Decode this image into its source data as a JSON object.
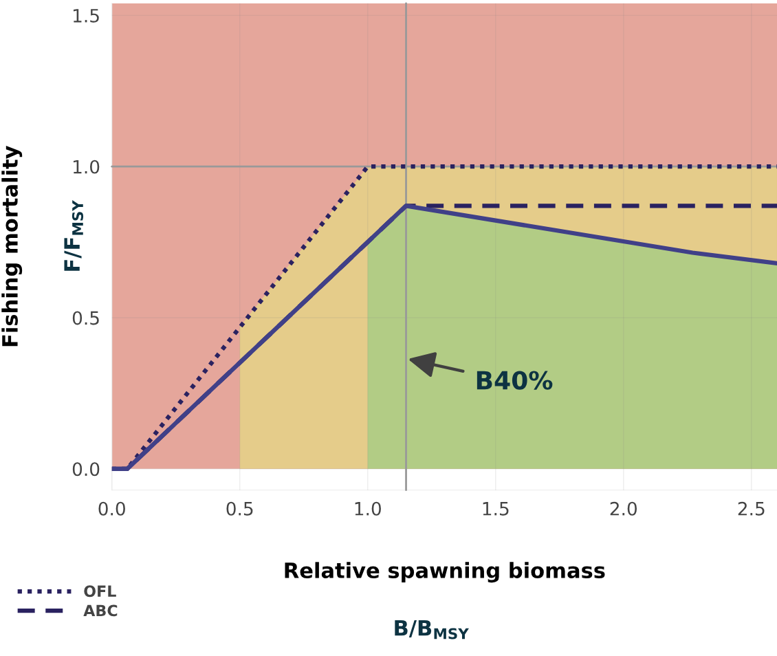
{
  "chart_data": {
    "type": "line",
    "xlabel": "Relative spawning biomass",
    "ylabel": "Fishing mortality",
    "annotations": [
      "B/B$_{MSY}$",
      "F/F$_{MSY}$"
    ],
    "xlim": [
      0,
      2.6
    ],
    "ylim": [
      -0.07,
      1.54
    ],
    "xticks": [
      {
        "value": 0,
        "label": "0.0"
      },
      0.5,
      {
        "value": 1,
        "label": "1.0"
      },
      1.5,
      {
        "value": 2,
        "label": "2.0"
      },
      2.5
    ],
    "yticks": [
      {
        "value": 0,
        "label": "0.0"
      },
      0.5,
      {
        "value": 1,
        "label": "1.0"
      },
      1.5
    ],
    "grid": true,
    "legend": "bottom left",
    "series": [
      {
        "type": "area",
        "color": "#e5cc8a",
        "x": [
          0.5,
          1.0,
          2.6
        ],
        "values": [
          0.47,
          1.0,
          1.0
        ]
      },
      {
        "type": "area",
        "color": "#b2cc85",
        "x": [
          1.0,
          1.15,
          2.27,
          2.6
        ],
        "values": [
          0.75,
          0.87,
          0.715,
          0.68
        ]
      },
      {
        "name": "OFL",
        "color": "#2a2260",
        "line_style": "dotted",
        "x": [
          0,
          0.06,
          1.0,
          2.6
        ],
        "values": [
          0,
          0,
          1.0,
          1.0
        ]
      },
      {
        "name": "ABC",
        "color": "#2a2260",
        "line_style": "dashed",
        "x": [
          0,
          0.06,
          1.15,
          2.6
        ],
        "values": [
          0,
          0,
          0.87,
          0.87
        ]
      },
      {
        "color": "#404088",
        "line_style": "solid",
        "x": [
          0,
          0.06,
          1.15,
          2.27,
          2.6
        ],
        "values": [
          0,
          0,
          0.87,
          0.715,
          0.68
        ]
      }
    ],
    "bands": [
      {
        "axis": "y",
        "from": 0,
        "to": 1.54,
        "color": "#e5a69b"
      }
    ],
    "ref_lines": [
      {
        "axis": "y",
        "value": 1.0,
        "color": "#999999"
      },
      {
        "axis": "x",
        "value": 1.15,
        "color": "#999999",
        "label": "B40%"
      }
    ]
  }
}
